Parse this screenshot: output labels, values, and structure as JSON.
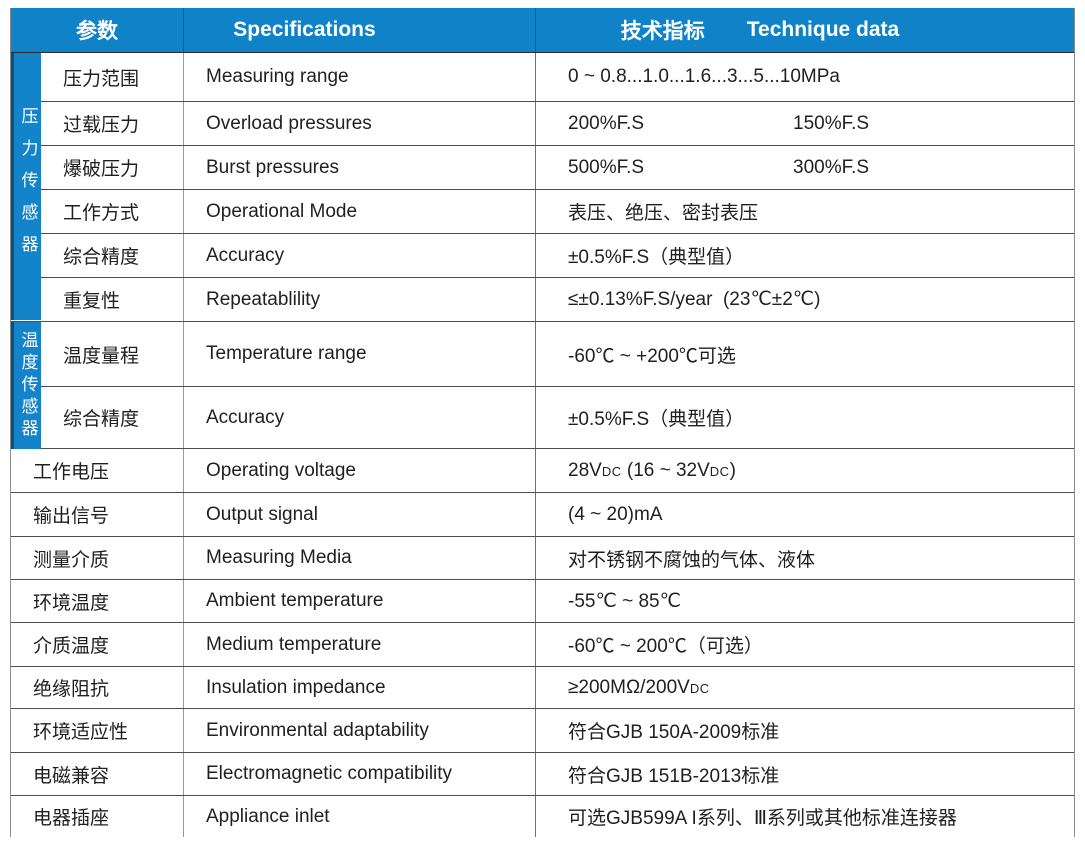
{
  "header": {
    "param": "参数",
    "spec": "Specifications",
    "data_zh": "技术指标",
    "data_en": "Technique data"
  },
  "sidebar": {
    "pressure": "压力传感器",
    "temperature": "温度传感器"
  },
  "colors": {
    "header_blue": "#0f82c8",
    "sidebar_blue": "#1384ca",
    "sidebar_edge_navy": "#0b5078",
    "row_line_gray": "#4d4d4d",
    "text_dark": "#1f1f1f"
  },
  "rows": [
    {
      "group": "pressure",
      "height": "h49",
      "zh": "压力范围",
      "en": "Measuring range",
      "values": [
        [
          {
            "t": "0 ~ 0.8...1.0...1.6...3...5...10MPa"
          }
        ]
      ]
    },
    {
      "group": "pressure",
      "height": "h44",
      "zh": "过载压力",
      "en": "Overload pressures",
      "values": [
        [
          {
            "t": "200%F.S"
          }
        ],
        [
          {
            "t": "150%F.S"
          }
        ]
      ]
    },
    {
      "group": "pressure",
      "height": "h44",
      "zh": "爆破压力",
      "en": "Burst pressures",
      "values": [
        [
          {
            "t": "500%F.S"
          }
        ],
        [
          {
            "t": "300%F.S"
          }
        ]
      ]
    },
    {
      "group": "pressure",
      "height": "h44",
      "zh": "工作方式",
      "en": "Operational Mode",
      "values": [
        [
          {
            "t": "表压、绝压、密封表压"
          }
        ]
      ]
    },
    {
      "group": "pressure",
      "height": "h44",
      "zh": "综合精度",
      "en": "Accuracy",
      "values": [
        [
          {
            "t": "±0.5%F.S（典型值）"
          }
        ]
      ]
    },
    {
      "group": "pressure",
      "height": "h44",
      "zh": "重复性",
      "en": "Repeatablility",
      "values": [
        [
          {
            "t": "≤±0.13%F.S/year  (23℃±2℃)"
          }
        ]
      ]
    },
    {
      "group": "temperature",
      "height": "h65",
      "zh": "温度量程",
      "en": "Temperature range",
      "values": [
        [
          {
            "t": "-60℃ ~ +200℃可选"
          }
        ]
      ]
    },
    {
      "group": "temperature",
      "height": "h62",
      "zh": "综合精度",
      "en": "Accuracy",
      "values": [
        [
          {
            "t": "±0.5%F.S（典型值）"
          }
        ]
      ]
    },
    {
      "group": "none",
      "height": "h44",
      "zh": "工作电压",
      "en": "Operating voltage",
      "values": [
        [
          {
            "t": "28V"
          },
          {
            "t": "DC",
            "small": true
          },
          {
            "t": " (16 ~ 32V"
          },
          {
            "t": "DC",
            "small": true
          },
          {
            "t": ")"
          }
        ]
      ]
    },
    {
      "group": "none",
      "height": "h44",
      "zh": "输出信号",
      "en": "Output signal",
      "values": [
        [
          {
            "t": "(4 ~ 20)mA"
          }
        ]
      ]
    },
    {
      "group": "none",
      "height": "h43",
      "zh": "测量介质",
      "en": "Measuring Media",
      "values": [
        [
          {
            "t": "对不锈钢不腐蚀的气体、液体"
          }
        ]
      ]
    },
    {
      "group": "none",
      "height": "h43",
      "zh": "环境温度",
      "en": "Ambient temperature",
      "values": [
        [
          {
            "t": "-55℃ ~ 85℃"
          }
        ]
      ]
    },
    {
      "group": "none",
      "height": "h44",
      "zh": "介质温度",
      "en": "Medium temperature",
      "values": [
        [
          {
            "t": "-60℃ ~ 200℃（可选）"
          }
        ]
      ]
    },
    {
      "group": "none",
      "height": "h42",
      "zh": "绝缘阻抗",
      "en": "Insulation impedance",
      "values": [
        [
          {
            "t": "≥200MΩ/200V"
          },
          {
            "t": "DC",
            "small": true
          }
        ]
      ]
    },
    {
      "group": "none",
      "height": "h44",
      "zh": "环境适应性",
      "en": "Environmental  adaptability",
      "values": [
        [
          {
            "t": "符合GJB 150A-2009标准"
          }
        ]
      ]
    },
    {
      "group": "none",
      "height": "h43",
      "zh": "电磁兼容",
      "en": "Electromagnetic compatibility",
      "values": [
        [
          {
            "t": "符合GJB 151B-2013标准"
          }
        ]
      ]
    },
    {
      "group": "none",
      "height": "h41",
      "zh": "电器插座",
      "en": "Appliance inlet",
      "values": [
        [
          {
            "t": "可选GJB599A I系列、Ⅲ系列或其他标准连接器"
          }
        ]
      ]
    }
  ]
}
